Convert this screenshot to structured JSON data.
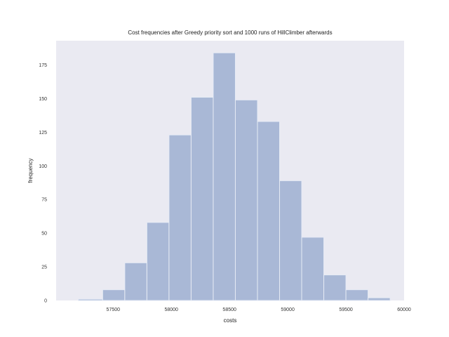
{
  "chart_data": {
    "type": "bar",
    "title": "Cost frequencies after Greedy priority sort and 1000 runs of HillClimber afterwards",
    "xlabel": "costs",
    "ylabel": "frequency",
    "bins": [
      {
        "x0": 57200,
        "x1": 57410,
        "count": 1
      },
      {
        "x0": 57410,
        "x1": 57600,
        "count": 8
      },
      {
        "x0": 57600,
        "x1": 57790,
        "count": 28
      },
      {
        "x0": 57790,
        "x1": 57980,
        "count": 58
      },
      {
        "x0": 57980,
        "x1": 58170,
        "count": 123
      },
      {
        "x0": 58170,
        "x1": 58360,
        "count": 151
      },
      {
        "x0": 58360,
        "x1": 58550,
        "count": 184
      },
      {
        "x0": 58550,
        "x1": 58740,
        "count": 149
      },
      {
        "x0": 58740,
        "x1": 58930,
        "count": 133
      },
      {
        "x0": 58930,
        "x1": 59120,
        "count": 89
      },
      {
        "x0": 59120,
        "x1": 59310,
        "count": 47
      },
      {
        "x0": 59310,
        "x1": 59500,
        "count": 19
      },
      {
        "x0": 59500,
        "x1": 59690,
        "count": 8
      },
      {
        "x0": 59690,
        "x1": 59880,
        "count": 2
      }
    ],
    "xlim": [
      57010,
      60000
    ],
    "ylim": [
      0,
      193
    ],
    "xticks": [
      57500,
      58000,
      58500,
      59000,
      59500,
      60000
    ],
    "yticks": [
      0,
      25,
      50,
      75,
      100,
      125,
      150,
      175
    ],
    "grid": false,
    "bar_color": "#a9b8d6",
    "bar_edge_color": "#e6ebf5",
    "plot_bg": "#eaeaf2"
  }
}
